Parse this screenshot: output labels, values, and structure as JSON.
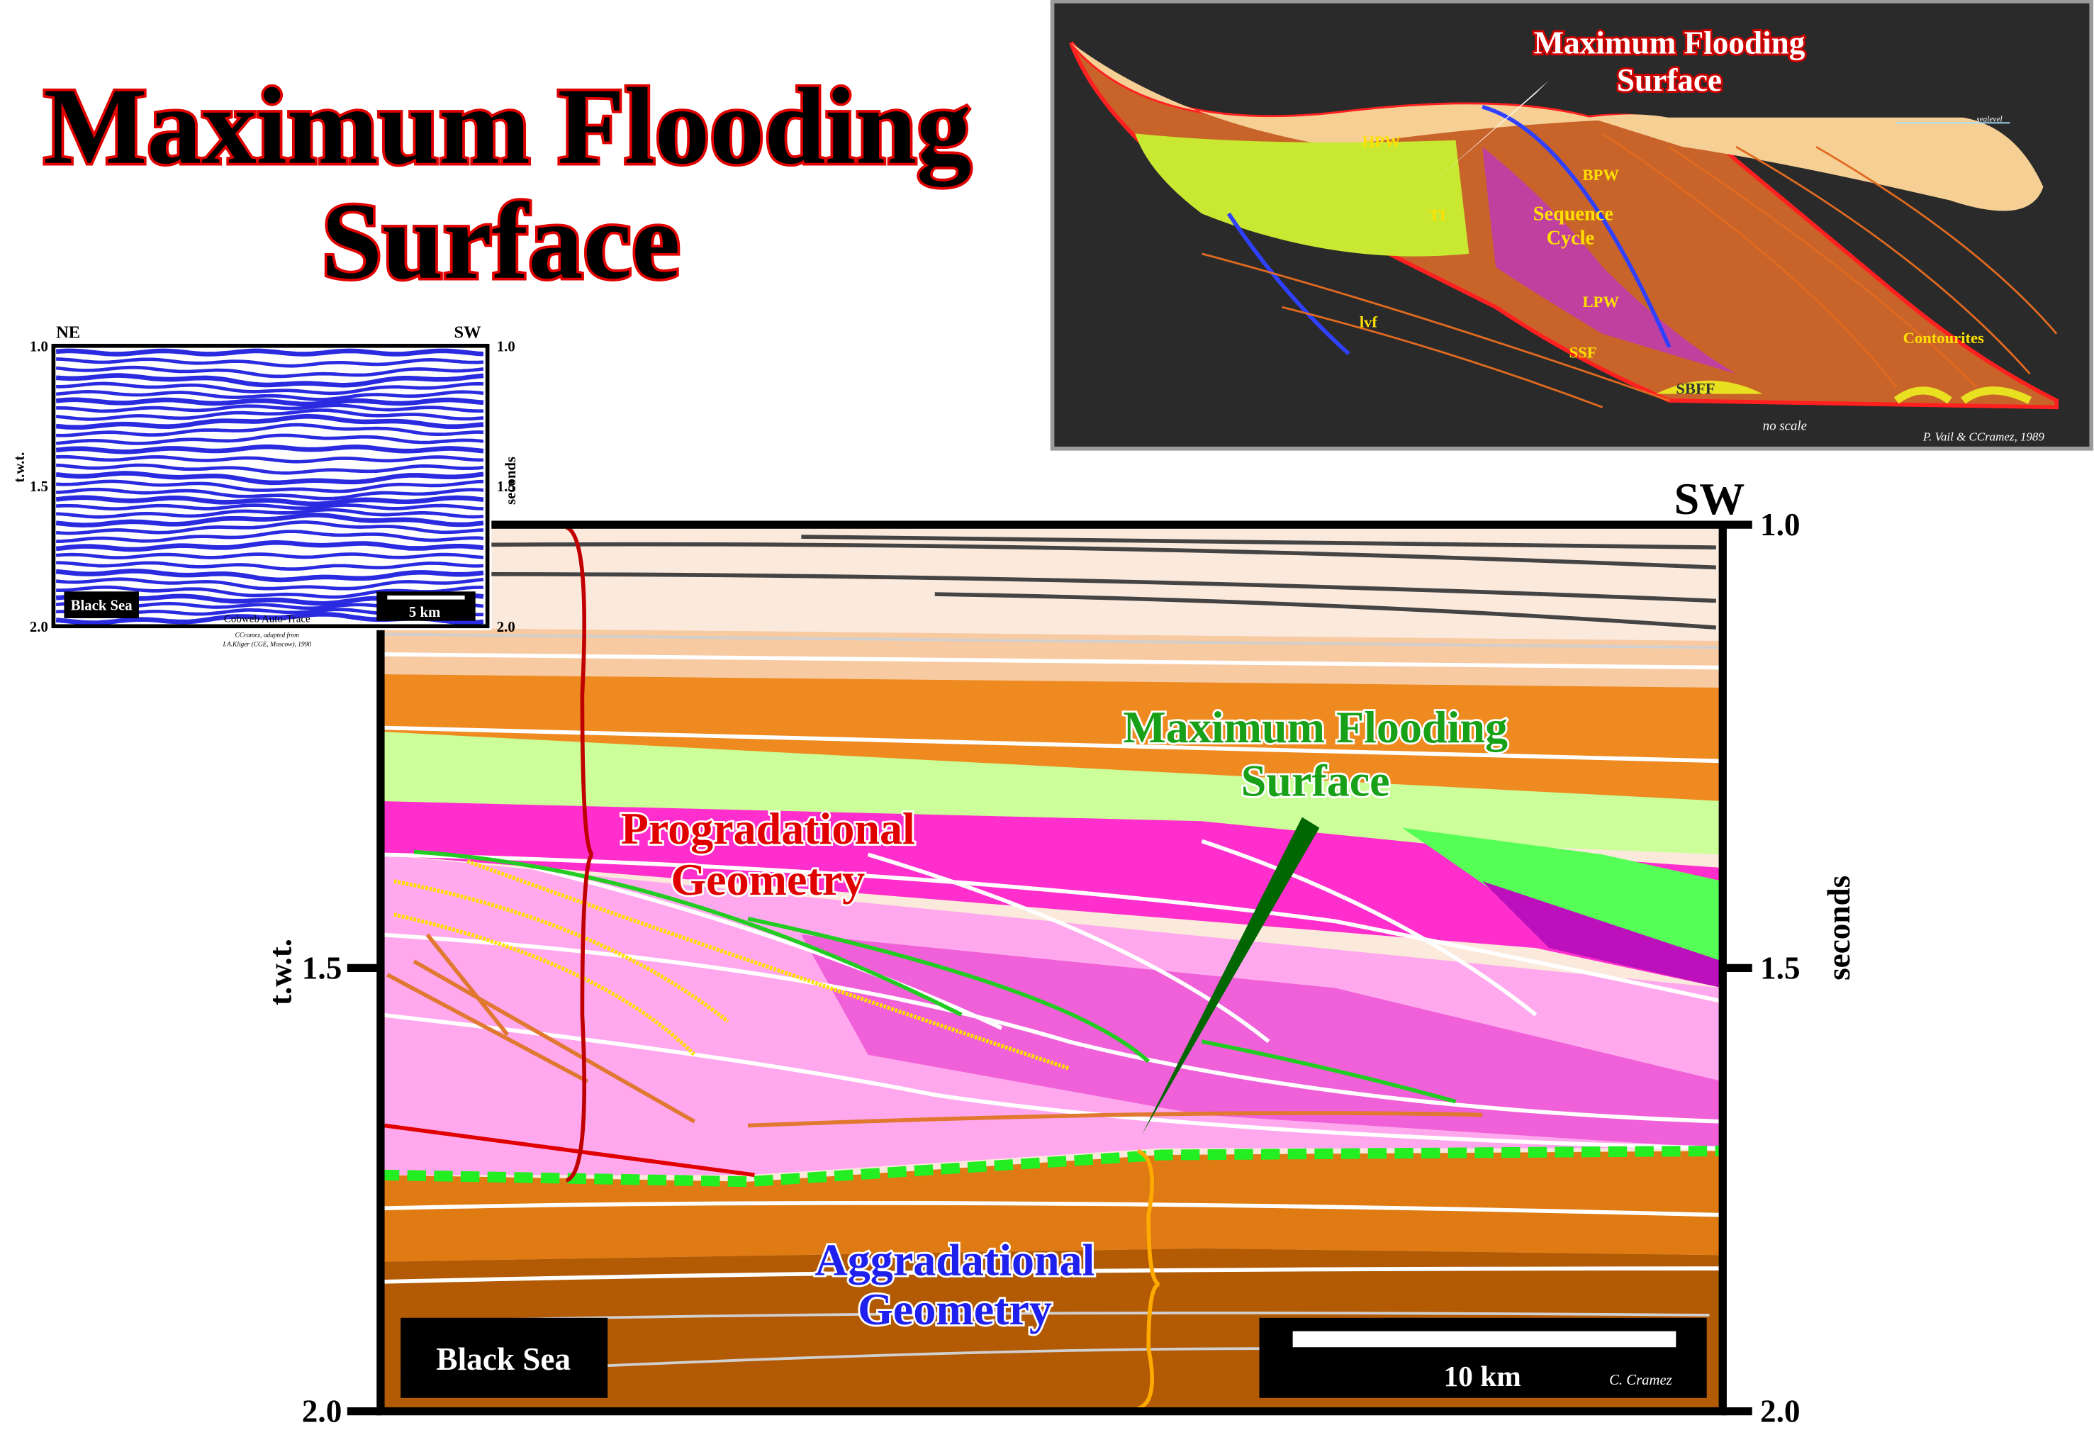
{
  "title": [
    "Maximum Flooding",
    "Surface"
  ],
  "seismic_inset": {
    "left_direction": "NE",
    "right_direction": "SW",
    "ticks": [
      "1.0",
      "1.5",
      "2.0"
    ],
    "left_axis": "t.w.t.",
    "right_axis": "seconds",
    "location": "Black Sea",
    "scale": "5 km",
    "caption": [
      "Cobweb Auto-Trace",
      "CCramez, adapted from",
      "I.A.Kliger (CGE, Moscow), 1990"
    ]
  },
  "vail_diagram": {
    "callout": [
      "Maximum Flooding",
      "Surface"
    ],
    "labels": [
      "HPW",
      "BPW",
      "TI",
      "LPW",
      "SSF",
      "SBFF",
      "lvf"
    ],
    "sequence": [
      "Sequence",
      "Cycle"
    ],
    "contourites": "Contourites",
    "sealevel": "sealevel",
    "no_scale": "no scale",
    "credit": "P. Vail & CCramez, 1989"
  },
  "section": {
    "direction": "SW",
    "left_ticks": [
      "1.5",
      "2.0"
    ],
    "right_ticks": [
      "1.0",
      "1.5",
      "2.0"
    ],
    "left_axis": "t.w.t.",
    "right_axis": "seconds",
    "mfs_label": [
      "Maximum Flooding",
      "Surface"
    ],
    "progradational": [
      "Progradational",
      "Geometry"
    ],
    "aggradational": [
      "Aggradational",
      "Geometry"
    ],
    "location": "Black Sea",
    "scale": "10 km",
    "credit": "C. Cramez"
  }
}
